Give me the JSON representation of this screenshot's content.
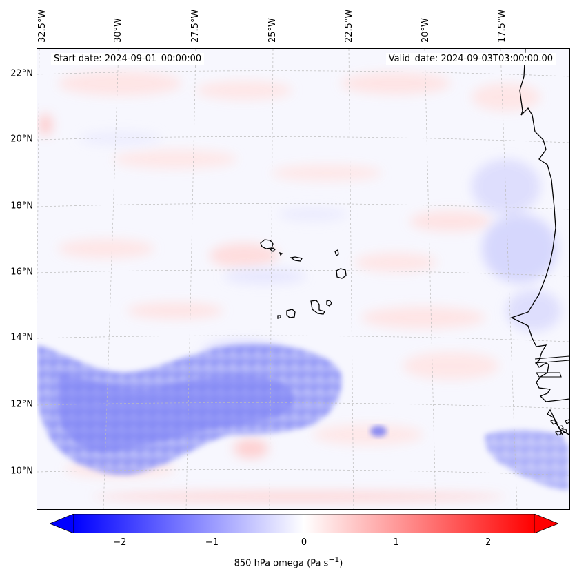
{
  "map": {
    "start_date": "Start date: 2024-09-01_00:00:00",
    "valid_date": "Valid_date: 2024-09-03T03:00:00.00",
    "lon_labels": [
      "32.5°W",
      "30°W",
      "27.5°W",
      "25°W",
      "22.5°W",
      "20°W",
      "17.5°W"
    ],
    "lat_labels": [
      "22°N",
      "20°N",
      "18°N",
      "16°N",
      "14°N",
      "12°N",
      "10°N"
    ],
    "colors": {
      "negative": "#0000ff",
      "neutral": "#ffffff",
      "positive": "#ff0000",
      "coast": "#000000",
      "grid": "#bbbbbb"
    }
  },
  "colorbar": {
    "ticks": [
      "−2",
      "−1",
      "0",
      "1",
      "2"
    ],
    "tick_values": [
      -2,
      -1,
      0,
      1,
      2
    ],
    "min": -2.5,
    "max": 2.5,
    "label_main": "850 hPa omega (Pa s",
    "label_sup": "−1",
    "label_end": ")"
  }
}
